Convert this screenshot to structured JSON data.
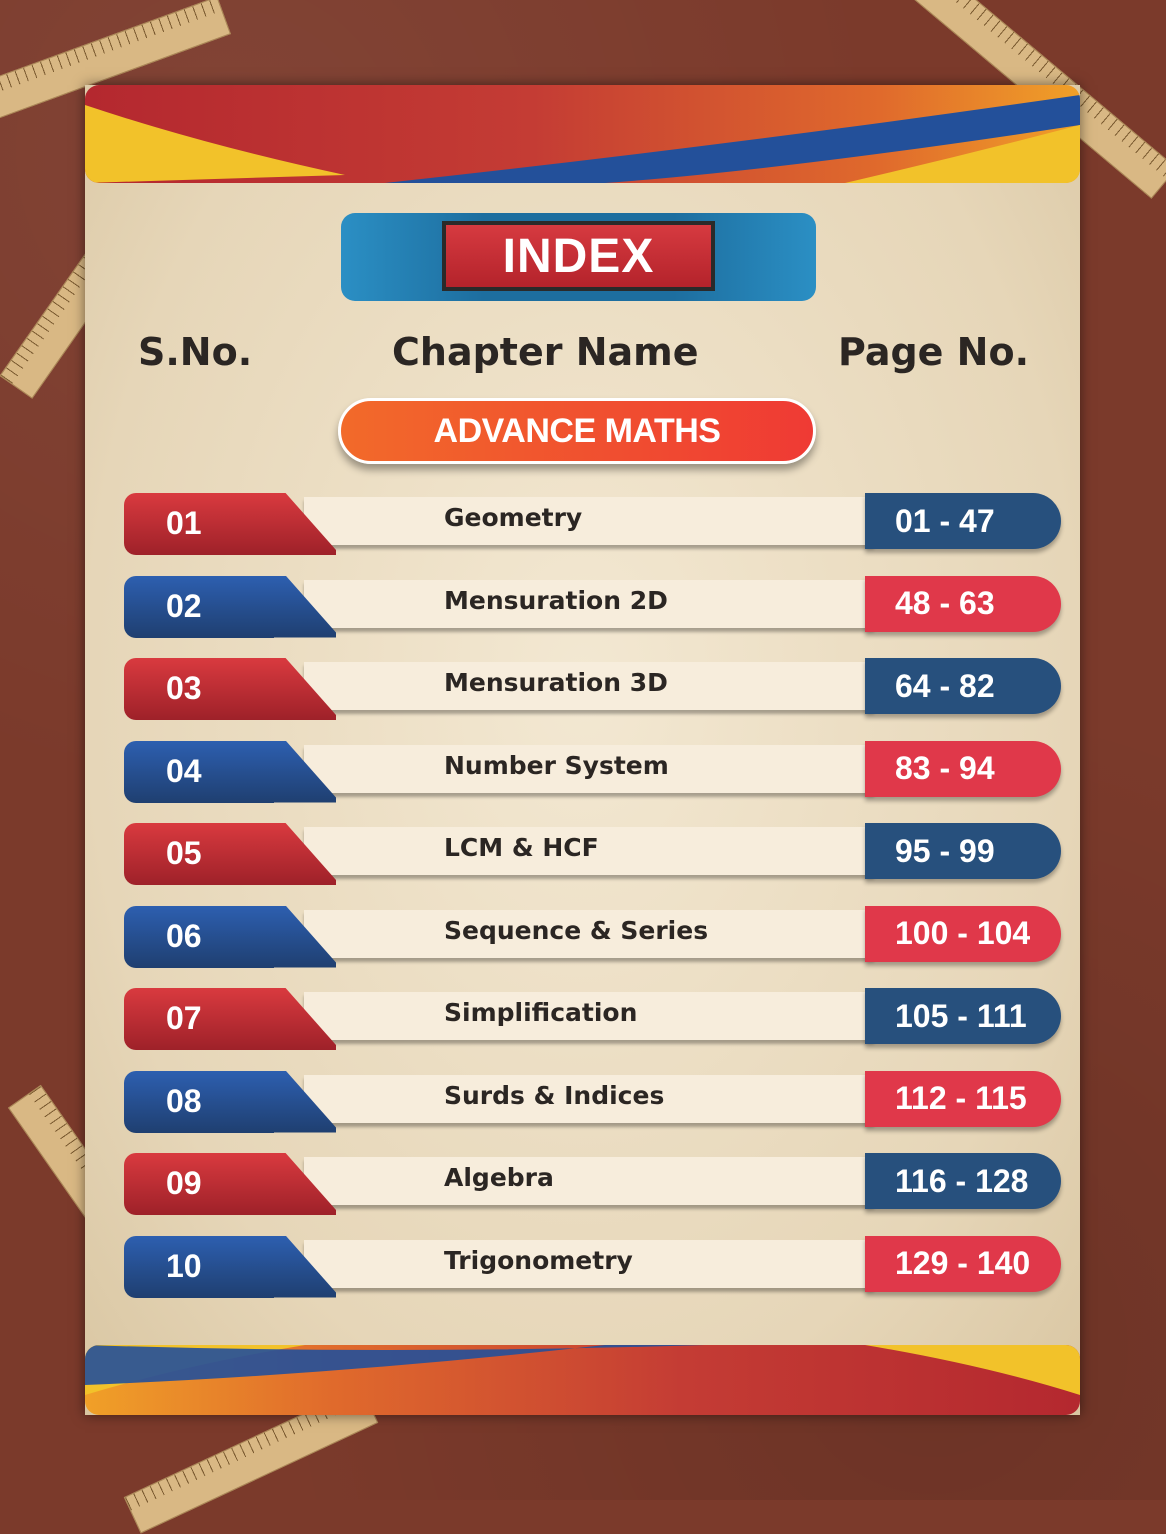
{
  "title": "INDEX",
  "columns": {
    "sno": "S.No.",
    "chapter": "Chapter Name",
    "page": "Page No."
  },
  "section": "ADVANCE MATHS",
  "colors": {
    "background": "#7b3a2b",
    "card": "#e6d6b8",
    "red": "#d93a3f",
    "blue": "#27507d",
    "accent_orange": "#f26a2a"
  },
  "rows": [
    {
      "sno": "01",
      "chapter": "Geometry",
      "pages": "01 - 47",
      "style": "red"
    },
    {
      "sno": "02",
      "chapter": "Mensuration 2D",
      "pages": "48 - 63",
      "style": "blue"
    },
    {
      "sno": "03",
      "chapter": "Mensuration 3D",
      "pages": "64 - 82",
      "style": "red"
    },
    {
      "sno": "04",
      "chapter": "Number System",
      "pages": "83 - 94",
      "style": "blue"
    },
    {
      "sno": "05",
      "chapter": "LCM & HCF",
      "pages": "95 - 99",
      "style": "red"
    },
    {
      "sno": "06",
      "chapter": "Sequence & Series",
      "pages": "100 - 104",
      "style": "blue"
    },
    {
      "sno": "07",
      "chapter": "Simplification",
      "pages": "105 - 111",
      "style": "red"
    },
    {
      "sno": "08",
      "chapter": "Surds & Indices",
      "pages": "112 - 115",
      "style": "blue"
    },
    {
      "sno": "09",
      "chapter": "Algebra",
      "pages": "116 - 128",
      "style": "red"
    },
    {
      "sno": "10",
      "chapter": "Trigonometry",
      "pages": "129 - 140",
      "style": "blue"
    }
  ]
}
